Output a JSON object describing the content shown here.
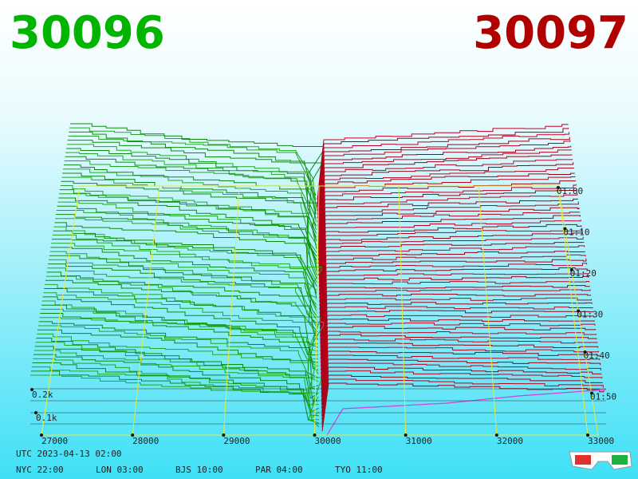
{
  "header": {
    "bid": "30096",
    "ask": "30097"
  },
  "price_axis": [
    "27000",
    "28000",
    "29000",
    "30000",
    "31000",
    "32000",
    "33000"
  ],
  "time_axis": [
    "01:00",
    "01:10",
    "01:20",
    "01:30",
    "01:40",
    "01:50"
  ],
  "depth_axis": [
    "0.2k",
    "0.1k"
  ],
  "footer": {
    "utc": "UTC 2023-04-13 02:00",
    "zones": [
      "NYC 22:00",
      "LON 03:00",
      "BJS 10:00",
      "PAR 04:00",
      "TYO 11:00"
    ]
  }
}
